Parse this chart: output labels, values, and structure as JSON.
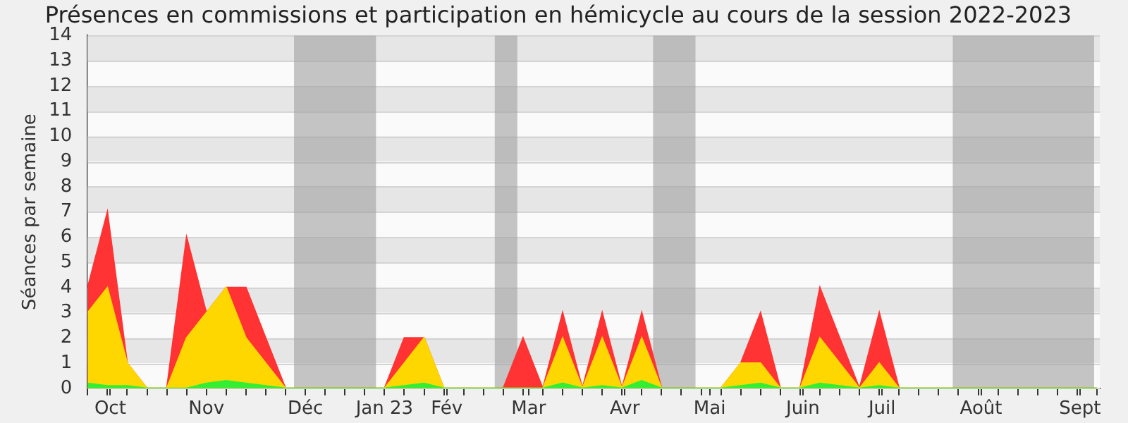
{
  "chart_data": {
    "type": "area",
    "title": "Présences en commissions et participation en hémicycle au cours de la session 2022-2023",
    "ylabel": "Séances par semaine",
    "x": [
      "2022-09-26",
      "2022-10-03",
      "2022-10-10",
      "2022-10-17",
      "2022-10-24",
      "2022-10-31",
      "2022-11-07",
      "2022-11-14",
      "2022-11-21",
      "2022-11-28",
      "2022-12-05",
      "2022-12-12",
      "2022-12-19",
      "2022-12-26",
      "2023-01-02",
      "2023-01-09",
      "2023-01-16",
      "2023-01-23",
      "2023-01-30",
      "2023-02-06",
      "2023-02-13",
      "2023-02-20",
      "2023-02-27",
      "2023-03-06",
      "2023-03-13",
      "2023-03-20",
      "2023-03-27",
      "2023-04-03",
      "2023-04-10",
      "2023-04-17",
      "2023-04-24",
      "2023-05-01",
      "2023-05-08",
      "2023-05-15",
      "2023-05-22",
      "2023-05-29",
      "2023-06-05",
      "2023-06-12",
      "2023-06-19",
      "2023-06-26",
      "2023-07-03",
      "2023-07-10",
      "2023-07-17",
      "2023-07-24",
      "2023-07-31",
      "2023-08-07",
      "2023-08-14",
      "2023-08-21",
      "2023-08-28",
      "2023-09-04",
      "2023-09-11",
      "2023-09-18"
    ],
    "series": [
      {
        "color": "#ff3333",
        "values": [
          4,
          7,
          1,
          0,
          0,
          6,
          3,
          4,
          4,
          2,
          0,
          0,
          0,
          0,
          0,
          0,
          2,
          2,
          0,
          0,
          0,
          0,
          2,
          0,
          3,
          0,
          3,
          0,
          3,
          0,
          0,
          0,
          0,
          1,
          3,
          0,
          0,
          4,
          2,
          0,
          3,
          0,
          0,
          0,
          0,
          0,
          0,
          0,
          0,
          0,
          0,
          0
        ]
      },
      {
        "color": "#ffd700",
        "values": [
          3,
          4,
          1,
          0,
          0,
          2,
          3,
          4,
          2,
          1,
          0,
          0,
          0,
          0,
          0,
          0,
          1,
          2,
          0,
          0,
          0,
          0,
          0,
          0,
          2,
          0,
          2,
          0,
          2,
          0,
          0,
          0,
          0,
          1,
          1,
          0,
          0,
          2,
          1,
          0,
          1,
          0,
          0,
          0,
          0,
          0,
          0,
          0,
          0,
          0,
          0,
          0
        ]
      },
      {
        "color": "#33ee33",
        "values": [
          0.2,
          0.1,
          0.1,
          0,
          0,
          0,
          0.2,
          0.3,
          0.2,
          0.1,
          0,
          0,
          0,
          0,
          0,
          0,
          0.1,
          0.2,
          0,
          0,
          0,
          0,
          0,
          0,
          0.2,
          0,
          0.1,
          0,
          0.3,
          0,
          0,
          0,
          0,
          0.1,
          0.2,
          0,
          0,
          0.2,
          0.1,
          0,
          0.1,
          0,
          0,
          0,
          0,
          0,
          0,
          0,
          0,
          0,
          0,
          0
        ]
      }
    ],
    "xlim": [
      "2022-09-26",
      "2023-09-19"
    ],
    "xticks": [
      {
        "value": "2022-09-26",
        "label": null
      },
      {
        "value": "2022-10-03",
        "label": null
      },
      {
        "value": "2022-10-04",
        "label": "Oct"
      },
      {
        "value": "2022-10-10",
        "label": null
      },
      {
        "value": "2022-10-17",
        "label": null
      },
      {
        "value": "2022-10-24",
        "label": null
      },
      {
        "value": "2022-10-31",
        "label": null
      },
      {
        "value": "2022-11-07",
        "label": "Nov"
      },
      {
        "value": "2022-11-14",
        "label": null
      },
      {
        "value": "2022-11-21",
        "label": null
      },
      {
        "value": "2022-11-28",
        "label": null
      },
      {
        "value": "2022-12-05",
        "label": null
      },
      {
        "value": "2022-12-12",
        "label": "Déc"
      },
      {
        "value": "2022-12-19",
        "label": null
      },
      {
        "value": "2022-12-26",
        "label": null
      },
      {
        "value": "2023-01-02",
        "label": null
      },
      {
        "value": "2023-01-09",
        "label": "Jan 23"
      },
      {
        "value": "2023-01-16",
        "label": null
      },
      {
        "value": "2023-01-23",
        "label": null
      },
      {
        "value": "2023-01-30",
        "label": null
      },
      {
        "value": "2023-01-31",
        "label": "Fév"
      },
      {
        "value": "2023-02-06",
        "label": null
      },
      {
        "value": "2023-02-13",
        "label": null
      },
      {
        "value": "2023-02-20",
        "label": null
      },
      {
        "value": "2023-02-27",
        "label": null
      },
      {
        "value": "2023-03-01",
        "label": "Mar"
      },
      {
        "value": "2023-03-06",
        "label": null
      },
      {
        "value": "2023-03-13",
        "label": null
      },
      {
        "value": "2023-03-20",
        "label": null
      },
      {
        "value": "2023-03-27",
        "label": null
      },
      {
        "value": "2023-04-03",
        "label": null
      },
      {
        "value": "2023-04-04",
        "label": "Avr"
      },
      {
        "value": "2023-04-10",
        "label": null
      },
      {
        "value": "2023-04-17",
        "label": null
      },
      {
        "value": "2023-04-24",
        "label": null
      },
      {
        "value": "2023-05-01",
        "label": null
      },
      {
        "value": "2023-05-04",
        "label": "Mai"
      },
      {
        "value": "2023-05-08",
        "label": null
      },
      {
        "value": "2023-05-15",
        "label": null
      },
      {
        "value": "2023-05-22",
        "label": null
      },
      {
        "value": "2023-05-29",
        "label": null
      },
      {
        "value": "2023-06-05",
        "label": null
      },
      {
        "value": "2023-06-06",
        "label": "Juin"
      },
      {
        "value": "2023-06-12",
        "label": null
      },
      {
        "value": "2023-06-19",
        "label": null
      },
      {
        "value": "2023-06-26",
        "label": null
      },
      {
        "value": "2023-07-03",
        "label": null
      },
      {
        "value": "2023-07-04",
        "label": "Juil"
      },
      {
        "value": "2023-07-10",
        "label": null
      },
      {
        "value": "2023-07-17",
        "label": null
      },
      {
        "value": "2023-07-24",
        "label": null
      },
      {
        "value": "2023-07-31",
        "label": null
      },
      {
        "value": "2023-08-07",
        "label": null
      },
      {
        "value": "2023-08-08",
        "label": "Août"
      },
      {
        "value": "2023-08-14",
        "label": null
      },
      {
        "value": "2023-08-21",
        "label": null
      },
      {
        "value": "2023-08-28",
        "label": null
      },
      {
        "value": "2023-09-04",
        "label": null
      },
      {
        "value": "2023-09-11",
        "label": null
      },
      {
        "value": "2023-09-12",
        "label": "Sept"
      },
      {
        "value": "2023-09-18",
        "label": null
      }
    ],
    "ylim": [
      0,
      14
    ],
    "yticks": [
      0,
      1,
      2,
      3,
      4,
      5,
      6,
      7,
      8,
      9,
      10,
      11,
      12,
      13,
      14
    ],
    "bands": [
      {
        "axis": "x",
        "from": "2022-12-08",
        "to": "2023-01-06",
        "color": "#a0a0a0"
      },
      {
        "axis": "x",
        "from": "2023-02-17",
        "to": "2023-02-25",
        "color": "#a0a0a0"
      },
      {
        "axis": "x",
        "from": "2023-04-14",
        "to": "2023-04-29",
        "color": "#a0a0a0"
      },
      {
        "axis": "x",
        "from": "2023-07-29",
        "to": "2023-09-17",
        "color": "#a0a0a0"
      }
    ],
    "grid": "y",
    "legend": false
  }
}
